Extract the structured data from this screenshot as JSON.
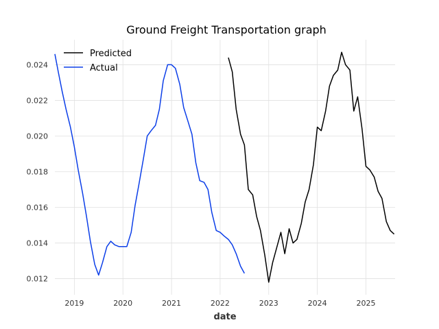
{
  "chart_data": {
    "type": "line",
    "title": "Ground Freight Transportation graph",
    "xlabel": "date",
    "ylabel": "",
    "xlim": [
      2018.6,
      2025.6
    ],
    "ylim": [
      0.0111,
      0.0254
    ],
    "xticks": [
      2019,
      2020,
      2021,
      2022,
      2023,
      2024,
      2025
    ],
    "xtick_labels": [
      "2019",
      "2020",
      "2021",
      "2022",
      "2023",
      "2024",
      "2025"
    ],
    "yticks": [
      0.012,
      0.014,
      0.016,
      0.018,
      0.02,
      0.022,
      0.024
    ],
    "ytick_labels": [
      "0.012",
      "0.014",
      "0.016",
      "0.018",
      "0.020",
      "0.022",
      "0.024"
    ],
    "grid": true,
    "legend_position": "top-left",
    "series": [
      {
        "name": "Predicted",
        "color": "#000000",
        "x": [
          2022.17,
          2022.25,
          2022.33,
          2022.42,
          2022.5,
          2022.58,
          2022.67,
          2022.75,
          2022.83,
          2022.92,
          2023.0,
          2023.08,
          2023.17,
          2023.25,
          2023.33,
          2023.42,
          2023.5,
          2023.58,
          2023.67,
          2023.75,
          2023.83,
          2023.92,
          2024.0,
          2024.08,
          2024.17,
          2024.25,
          2024.33,
          2024.42,
          2024.5,
          2024.58,
          2024.67,
          2024.75,
          2024.83,
          2024.92,
          2025.0,
          2025.08,
          2025.17,
          2025.25,
          2025.33,
          2025.42,
          2025.5,
          2025.58
        ],
        "y": [
          0.0244,
          0.0236,
          0.0215,
          0.0201,
          0.0195,
          0.017,
          0.0167,
          0.0155,
          0.0147,
          0.0133,
          0.0118,
          0.0129,
          0.0138,
          0.0146,
          0.0134,
          0.0148,
          0.014,
          0.0142,
          0.0151,
          0.0163,
          0.017,
          0.0184,
          0.0205,
          0.0203,
          0.0214,
          0.0228,
          0.0234,
          0.0237,
          0.0247,
          0.024,
          0.0237,
          0.0214,
          0.0222,
          0.0204,
          0.0183,
          0.0181,
          0.0177,
          0.0169,
          0.0165,
          0.0152,
          0.0147,
          0.0145
        ]
      },
      {
        "name": "Actual",
        "color": "#0b3ee8",
        "x": [
          2018.6,
          2018.67,
          2018.75,
          2018.83,
          2018.92,
          2019.0,
          2019.08,
          2019.17,
          2019.25,
          2019.33,
          2019.42,
          2019.5,
          2019.58,
          2019.67,
          2019.75,
          2019.83,
          2019.92,
          2020.0,
          2020.08,
          2020.17,
          2020.25,
          2020.33,
          2020.42,
          2020.5,
          2020.58,
          2020.67,
          2020.75,
          2020.83,
          2020.92,
          2021.0,
          2021.08,
          2021.17,
          2021.25,
          2021.33,
          2021.42,
          2021.5,
          2021.58,
          2021.67,
          2021.75,
          2021.83,
          2021.92,
          2022.0,
          2022.08,
          2022.17,
          2022.25,
          2022.33,
          2022.42,
          2022.5
        ],
        "y": [
          0.0246,
          0.0236,
          0.0225,
          0.0215,
          0.0205,
          0.0194,
          0.0181,
          0.0168,
          0.0155,
          0.0141,
          0.0128,
          0.0122,
          0.0129,
          0.0138,
          0.0141,
          0.0139,
          0.0138,
          0.0138,
          0.0138,
          0.0146,
          0.0161,
          0.0173,
          0.0187,
          0.02,
          0.0203,
          0.0206,
          0.0215,
          0.0231,
          0.024,
          0.024,
          0.0238,
          0.0229,
          0.0216,
          0.0209,
          0.0201,
          0.0185,
          0.0175,
          0.0174,
          0.017,
          0.0157,
          0.0147,
          0.0146,
          0.0144,
          0.0142,
          0.0139,
          0.0134,
          0.0127,
          0.0123
        ]
      }
    ]
  }
}
